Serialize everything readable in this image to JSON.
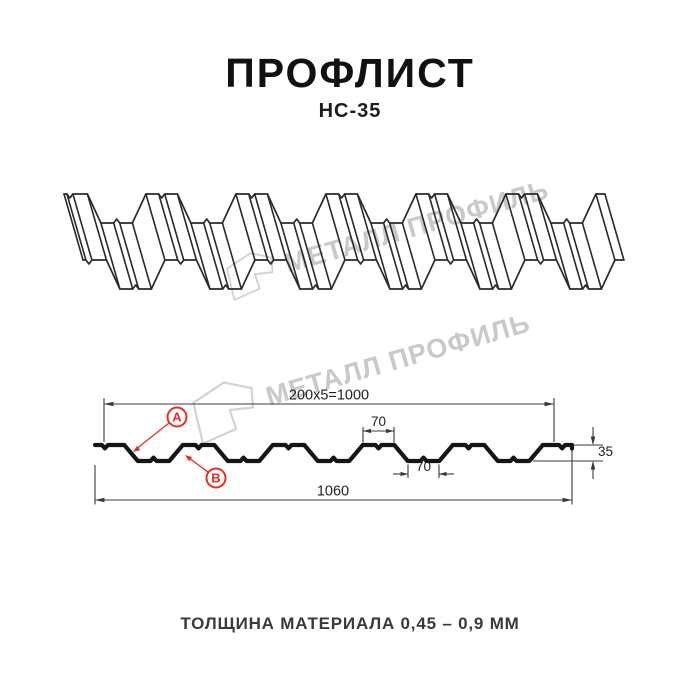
{
  "header": {
    "title": "ПРОФЛИСТ",
    "subtitle": "НС-35"
  },
  "watermark": {
    "text": "МЕТАЛЛ ПРОФИЛЬ"
  },
  "section": {
    "dim_top": "200x5=1000",
    "dim_bottom": "1060",
    "dim_rib_top": "70",
    "dim_rib_bottom": "70",
    "dim_height": "35",
    "label_a": "A",
    "label_b": "B"
  },
  "footer": {
    "caption": "ТОЛЩИНА МАТЕРИАЛА 0,45 – 0,9 ММ"
  },
  "colors": {
    "accent_red": "#e62e23",
    "line": "#1a1a1a",
    "watermark": "#c9c9c9"
  }
}
